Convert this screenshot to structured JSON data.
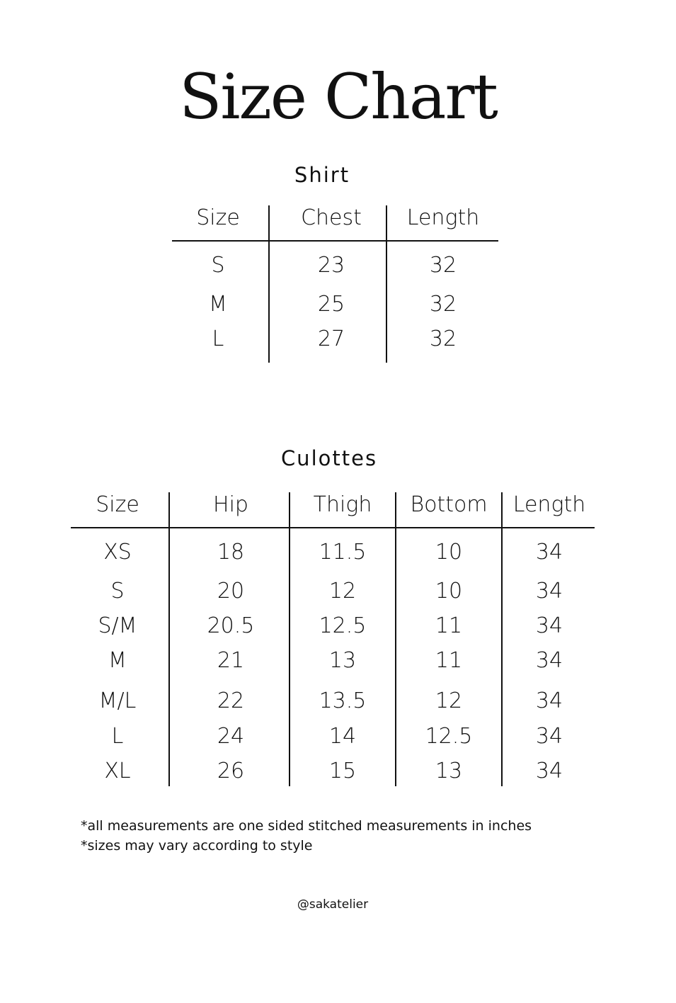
{
  "title": "Size Chart",
  "shirt": {
    "title": "Shirt",
    "headers": [
      "Size",
      "Chest",
      "Length"
    ],
    "rows": [
      [
        "S",
        "23",
        "32"
      ],
      [
        "M",
        "25",
        "32"
      ],
      [
        "L",
        "27",
        "32"
      ]
    ]
  },
  "culottes": {
    "title": "Culottes",
    "headers": [
      "Size",
      "Hip",
      "Thigh",
      "Bottom",
      "Length"
    ],
    "rows": [
      [
        "XS",
        "18",
        "11.5",
        "10",
        "34"
      ],
      [
        "S",
        "20",
        "12",
        "10",
        "34"
      ],
      [
        "S/M",
        "20.5",
        "12.5",
        "11",
        "34"
      ],
      [
        "M",
        "21",
        "13",
        "11",
        "34"
      ],
      [
        "M/L",
        "22",
        "13.5",
        "12",
        "34"
      ],
      [
        "L",
        "24",
        "14",
        "12.5",
        "34"
      ],
      [
        "XL",
        "26",
        "15",
        "13",
        "34"
      ]
    ]
  },
  "notes": [
    "*all measurements are one sided stitched measurements in inches",
    "*sizes may vary according to style"
  ],
  "handle": "@sakatelier"
}
